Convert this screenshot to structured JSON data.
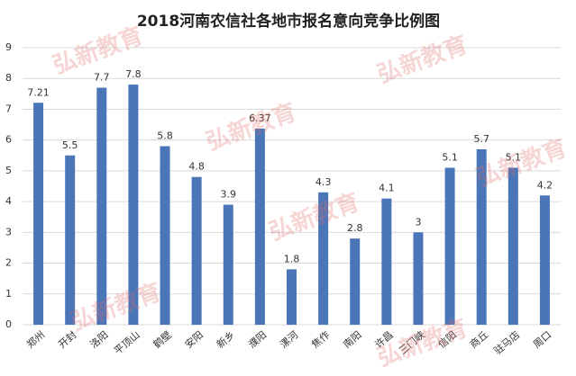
{
  "chart_data": {
    "type": "bar",
    "title": "2018河南农信社各地市报名意向竞争比例图",
    "watermark": "弘新教育",
    "categories": [
      "郑州",
      "开封",
      "洛阳",
      "平顶山",
      "鹤壁",
      "安阳",
      "新乡",
      "濮阳",
      "漯河",
      "焦作",
      "南阳",
      "许昌",
      "三门峡",
      "信阳",
      "商丘",
      "驻马店",
      "周口"
    ],
    "values": [
      7.21,
      5.5,
      7.7,
      7.8,
      5.8,
      4.8,
      3.9,
      6.37,
      1.8,
      4.3,
      2.8,
      4.1,
      3,
      5.1,
      5.7,
      5.1,
      4.2
    ],
    "color": "#4a76b8",
    "ylim": [
      0,
      9
    ],
    "yticks": [
      0,
      1,
      2,
      3,
      4,
      5,
      6,
      7,
      8,
      9
    ],
    "grid": true
  }
}
